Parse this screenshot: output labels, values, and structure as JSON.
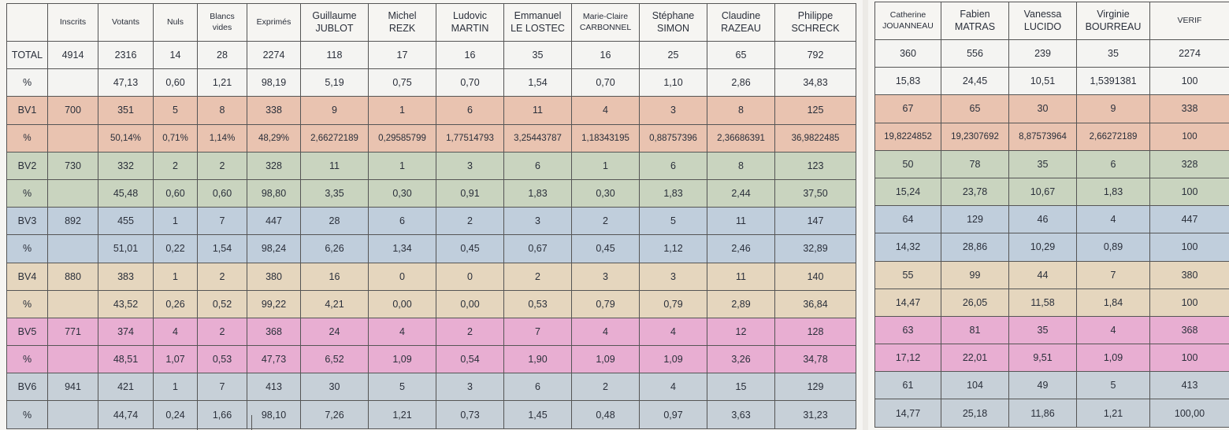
{
  "left_table": {
    "headers": [
      {
        "lines": [
          ""
        ]
      },
      {
        "lines": [
          "Inscrits"
        ],
        "small": true
      },
      {
        "lines": [
          "Votants"
        ],
        "small": true
      },
      {
        "lines": [
          "Nuls"
        ],
        "small": true
      },
      {
        "lines": [
          "Blancs",
          "vides"
        ],
        "small": true
      },
      {
        "lines": [
          "Exprimés"
        ],
        "small": true
      },
      {
        "lines": [
          "Guillaume",
          "JUBLOT"
        ]
      },
      {
        "lines": [
          "Michel",
          "REZK"
        ]
      },
      {
        "lines": [
          "Ludovic",
          "MARTIN"
        ]
      },
      {
        "lines": [
          "Emmanuel",
          "LE LOSTEC"
        ]
      },
      {
        "lines": [
          "Marie-Claire",
          "CARBONNEL"
        ],
        "small": true
      },
      {
        "lines": [
          "Stéphane",
          "SIMON"
        ]
      },
      {
        "lines": [
          "Claudine",
          "RAZEAU"
        ]
      },
      {
        "lines": [
          "Philippe",
          "SCHRECK"
        ]
      }
    ],
    "rows": [
      {
        "band": "total",
        "cells": [
          "TOTAL",
          "4914",
          "2316",
          "14",
          "28",
          "2274",
          "118",
          "17",
          "16",
          "35",
          "16",
          "25",
          "65",
          "792"
        ]
      },
      {
        "band": "total",
        "cells": [
          "%",
          "",
          "47,13",
          "0,60",
          "1,21",
          "98,19",
          "5,19",
          "0,75",
          "0,70",
          "1,54",
          "0,70",
          "1,10",
          "2,86",
          "34,83"
        ]
      },
      {
        "band": "bv1",
        "cells": [
          "BV1",
          "700",
          "351",
          "5",
          "8",
          "338",
          "9",
          "1",
          "6",
          "11",
          "4",
          "3",
          "8",
          "125"
        ]
      },
      {
        "band": "bv1",
        "small": true,
        "cells": [
          "%",
          "",
          "50,14%",
          "0,71%",
          "1,14%",
          "48,29%",
          "2,66272189",
          "0,29585799",
          "1,77514793",
          "3,25443787",
          "1,18343195",
          "0,88757396",
          "2,36686391",
          "36,9822485"
        ]
      },
      {
        "band": "bv2",
        "cells": [
          "BV2",
          "730",
          "332",
          "2",
          "2",
          "328",
          "11",
          "1",
          "3",
          "6",
          "1",
          "6",
          "8",
          "123"
        ]
      },
      {
        "band": "bv2",
        "cells": [
          "%",
          "",
          "45,48",
          "0,60",
          "0,60",
          "98,80",
          "3,35",
          "0,30",
          "0,91",
          "1,83",
          "0,30",
          "1,83",
          "2,44",
          "37,50"
        ]
      },
      {
        "band": "bv3",
        "cells": [
          "BV3",
          "892",
          "455",
          "1",
          "7",
          "447",
          "28",
          "6",
          "2",
          "3",
          "2",
          "5",
          "11",
          "147"
        ]
      },
      {
        "band": "bv3",
        "cells": [
          "%",
          "",
          "51,01",
          "0,22",
          "1,54",
          "98,24",
          "6,26",
          "1,34",
          "0,45",
          "0,67",
          "0,45",
          "1,12",
          "2,46",
          "32,89"
        ]
      },
      {
        "band": "bv4",
        "cells": [
          "BV4",
          "880",
          "383",
          "1",
          "2",
          "380",
          "16",
          "0",
          "0",
          "2",
          "3",
          "3",
          "11",
          "140"
        ]
      },
      {
        "band": "bv4",
        "cells": [
          "%",
          "",
          "43,52",
          "0,26",
          "0,52",
          "99,22",
          "4,21",
          "0,00",
          "0,00",
          "0,53",
          "0,79",
          "0,79",
          "2,89",
          "36,84"
        ]
      },
      {
        "band": "bv5",
        "cells": [
          "BV5",
          "771",
          "374",
          "4",
          "2",
          "368",
          "24",
          "4",
          "2",
          "7",
          "4",
          "4",
          "12",
          "128"
        ]
      },
      {
        "band": "bv5",
        "cells": [
          "%",
          "",
          "48,51",
          "1,07",
          "0,53",
          "47,73",
          "6,52",
          "1,09",
          "0,54",
          "1,90",
          "1,09",
          "1,09",
          "3,26",
          "34,78"
        ]
      },
      {
        "band": "bv6",
        "cells": [
          "BV6",
          "941",
          "421",
          "1",
          "7",
          "413",
          "30",
          "5",
          "3",
          "6",
          "2",
          "4",
          "15",
          "129"
        ]
      },
      {
        "band": "bv6",
        "cells": [
          "%",
          "",
          "44,74",
          "0,24",
          "1,66",
          "98,10",
          "7,26",
          "1,21",
          "0,73",
          "1,45",
          "0,48",
          "0,97",
          "3,63",
          "31,23"
        ]
      }
    ]
  },
  "right_table": {
    "headers": [
      {
        "lines": [
          "Catherine",
          "JOUANNEAU"
        ],
        "small": true
      },
      {
        "lines": [
          "Fabien",
          "MATRAS"
        ]
      },
      {
        "lines": [
          "Vanessa",
          "LUCIDO"
        ]
      },
      {
        "lines": [
          "Virginie",
          "BOURREAU"
        ]
      },
      {
        "lines": [
          "VERIF"
        ],
        "small": true
      }
    ],
    "rows": [
      {
        "band": "total",
        "cells": [
          "360",
          "556",
          "239",
          "35",
          "2274"
        ]
      },
      {
        "band": "total",
        "cells": [
          "15,83",
          "24,45",
          "10,51",
          "1,5391381",
          "100"
        ]
      },
      {
        "band": "bv1",
        "cells": [
          "67",
          "65",
          "30",
          "9",
          "338"
        ]
      },
      {
        "band": "bv1",
        "small": true,
        "cells": [
          "19,8224852",
          "19,2307692",
          "8,87573964",
          "2,66272189",
          "100"
        ]
      },
      {
        "band": "bv2",
        "cells": [
          "50",
          "78",
          "35",
          "6",
          "328"
        ]
      },
      {
        "band": "bv2",
        "cells": [
          "15,24",
          "23,78",
          "10,67",
          "1,83",
          "100"
        ]
      },
      {
        "band": "bv3",
        "cells": [
          "64",
          "129",
          "46",
          "4",
          "447"
        ]
      },
      {
        "band": "bv3",
        "cells": [
          "14,32",
          "28,86",
          "10,29",
          "0,89",
          "100"
        ]
      },
      {
        "band": "bv4",
        "cells": [
          "55",
          "99",
          "44",
          "7",
          "380"
        ]
      },
      {
        "band": "bv4",
        "cells": [
          "14,47",
          "26,05",
          "11,58",
          "1,84",
          "100"
        ]
      },
      {
        "band": "bv5",
        "cells": [
          "63",
          "81",
          "35",
          "4",
          "368"
        ]
      },
      {
        "band": "bv5",
        "cells": [
          "17,12",
          "22,01",
          "9,51",
          "1,09",
          "100"
        ]
      },
      {
        "band": "bv6",
        "cells": [
          "61",
          "104",
          "49",
          "5",
          "413"
        ]
      },
      {
        "band": "bv6",
        "cells": [
          "14,77",
          "25,18",
          "11,86",
          "1,21",
          "100,00"
        ]
      }
    ]
  },
  "band_colors": {
    "total": "#f4f4f2",
    "bv1": "#e9c3b0",
    "bv2": "#c9d4bf",
    "bv3": "#c0cedc",
    "bv4": "#e5d6be",
    "bv5": "#e8aed2",
    "bv6": "#c7d0d8"
  }
}
